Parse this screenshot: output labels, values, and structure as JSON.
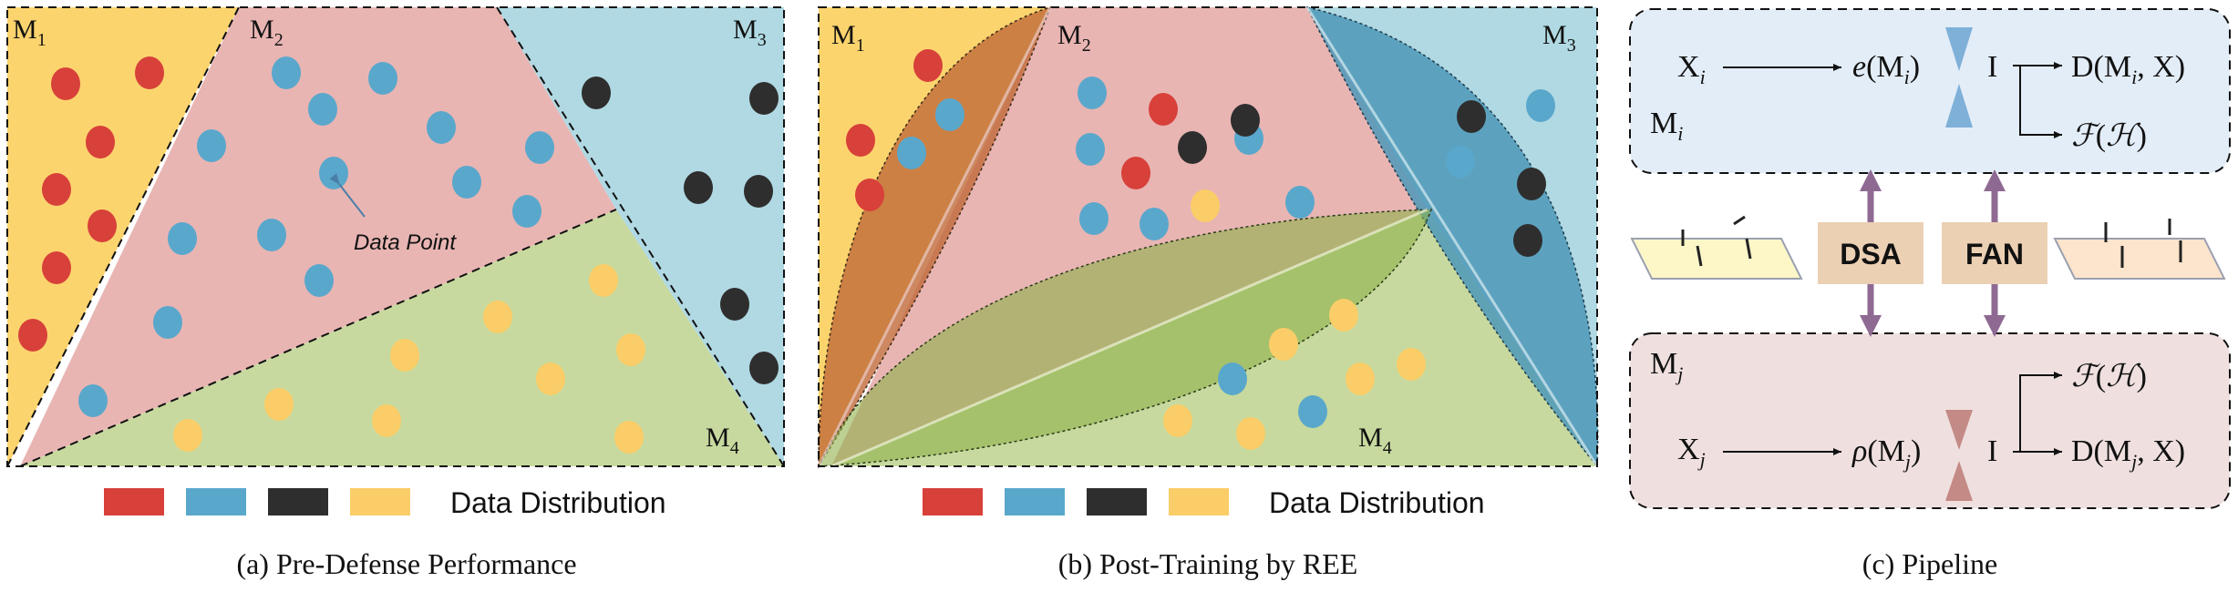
{
  "panels": {
    "a": {
      "caption": "(a) Pre-Defense Performance",
      "regions": [
        "M1",
        "M2",
        "M3",
        "M4"
      ],
      "annotation": "Data Point",
      "legend_label": "Data Distribution"
    },
    "b": {
      "caption": "(b) Post-Training by REE",
      "regions": [
        "M1",
        "M2",
        "M3",
        "M4"
      ],
      "legend_label": "Data Distribution"
    },
    "c": {
      "caption": "(c) Pipeline",
      "top": {
        "input": "X_i",
        "encoder": "e(M_i)",
        "bottleneck": "I",
        "output_d": "D(M_i, X)",
        "output_f": "F(H)",
        "model": "M_i"
      },
      "bottom": {
        "input": "X_j",
        "encoder": "ρ(M_j)",
        "bottleneck": "I",
        "output_d": "D(M_j, X)",
        "output_f": "F(H)",
        "model": "M_j"
      },
      "buttons": [
        "DSA",
        "FAN"
      ]
    }
  },
  "colors": {
    "red": "#d8403a",
    "blue": "#5aa7cc",
    "black": "#2e2e2e",
    "yellow": "#fbcd68",
    "region_m1": "#fbd46e",
    "region_m2": "#e8b5b3",
    "region_m3": "#b0d9e3",
    "region_m4": "#c7d99e",
    "top_box": "#e3edf8",
    "bottom_box": "#efe0df",
    "button": "#ecd0b4",
    "arrow_purple": "#8e6a93"
  }
}
